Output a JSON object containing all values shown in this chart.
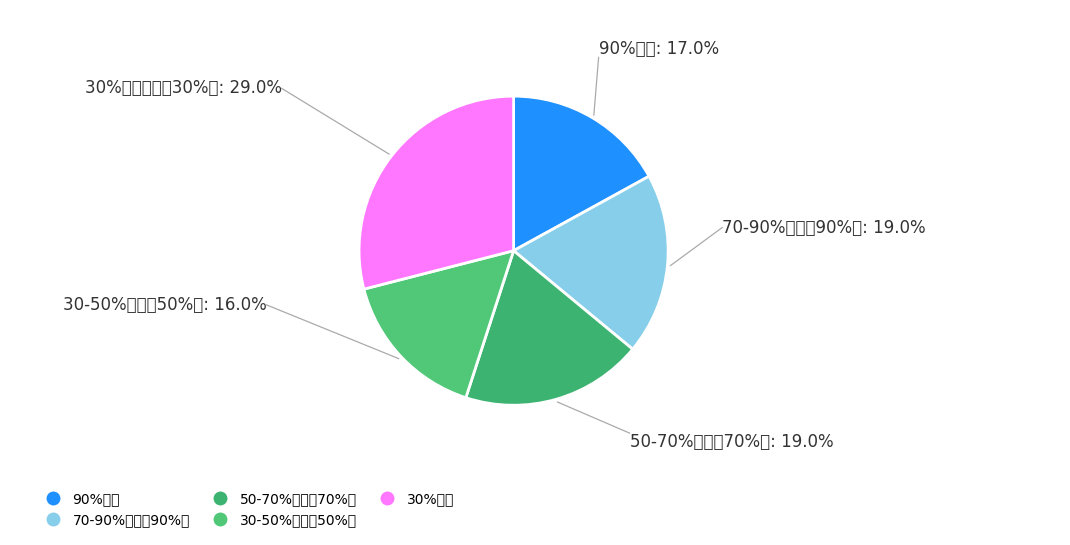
{
  "values": [
    17.0,
    19.0,
    19.0,
    16.0,
    29.0
  ],
  "colors": [
    "#1E90FF",
    "#87CEEB",
    "#3CB371",
    "#50C878",
    "#FF77FF"
  ],
  "annotation_labels": [
    "90%以上: 17.0%",
    "70-90%（不吩90%）: 19.0%",
    "50-70%（不吩70%）: 19.0%",
    "30-50%（不吩50%）: 16.0%",
    "30%以下（不吩30%）: 29.0%"
  ],
  "legend_labels": [
    "90%以上",
    "70-90%（不吩90%）",
    "50-70%（不吩70%）",
    "30-50%（不吩50%）",
    "30%以下"
  ],
  "background_color": "#FFFFFF",
  "annotation_color": "#333333",
  "line_color": "#AAAAAA",
  "font_size_annotation": 12,
  "font_size_legend": 12,
  "wedge_edge_color": "#FFFFFF",
  "wedge_linewidth": 2.0
}
